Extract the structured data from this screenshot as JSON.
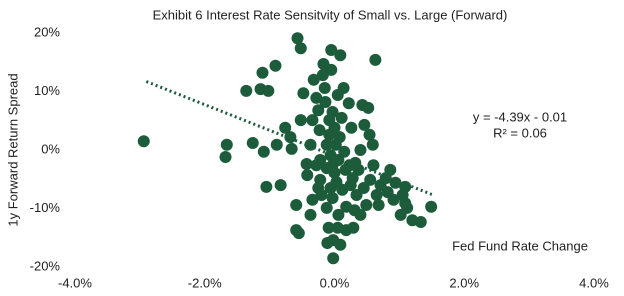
{
  "chart_data": {
    "type": "scatter",
    "title": "Exhibit 6 Interest Rate Sensitvity of Small vs. Large (Forward)",
    "x_label": "Fed Fund Rate Change",
    "y_label": "1y Forward Return Spread",
    "annotations": [
      "y = -4.39x - 0.01",
      "R² = 0.06"
    ],
    "color": "#1d5c3b",
    "xlim": [
      -4,
      4
    ],
    "ylim": [
      -20,
      20
    ],
    "xticks": [
      {
        "value": -4,
        "label": "-4.0%"
      },
      {
        "value": -2,
        "label": "-2.0%"
      },
      {
        "value": 0,
        "label": "0.0%"
      },
      {
        "value": 2,
        "label": "2.0%"
      },
      {
        "value": 4,
        "label": "4.0%"
      }
    ],
    "yticks": [
      {
        "value": -20,
        "label": "-20%"
      },
      {
        "value": -10,
        "label": "-10%"
      },
      {
        "value": 0,
        "label": "0%"
      },
      {
        "value": 10,
        "label": "10%"
      },
      {
        "value": 20,
        "label": "20%"
      }
    ],
    "trendline": {
      "x": [
        -2.9,
        1.5
      ],
      "y": [
        11.7,
        -7.6
      ]
    },
    "x": [
      -2.94,
      -1.66,
      -1.68,
      -1.36,
      -1.11,
      -1.14,
      -1.02,
      -0.91,
      -1.26,
      -1.09,
      -1.05,
      -0.89,
      -0.83,
      -0.76,
      -0.68,
      -0.66,
      -0.59,
      -0.59,
      -0.55,
      -0.57,
      -0.52,
      -0.48,
      -0.43,
      -0.42,
      -0.37,
      -0.34,
      -0.32,
      -0.28,
      -0.25,
      -0.23,
      -0.22,
      -0.22,
      -0.2,
      -0.18,
      -0.17,
      -0.15,
      -0.14,
      -0.12,
      -0.12,
      -0.12,
      -0.11,
      -0.09,
      -0.08,
      -0.08,
      -0.06,
      -0.06,
      -0.05,
      -0.05,
      -0.03,
      -0.03,
      -0.03,
      -0.02,
      -0.02,
      0,
      0,
      0.02,
      0.03,
      0.05,
      0.06,
      0.06,
      0.08,
      0.09,
      0.11,
      0.12,
      0.14,
      0.15,
      0.17,
      0.18,
      0.18,
      0.22,
      0.23,
      0.25,
      0.26,
      0.28,
      0.29,
      0.32,
      0.34,
      0.37,
      0.4,
      0.43,
      0.45,
      0.46,
      0.49,
      0.52,
      0.54,
      0.55,
      0.59,
      0.6,
      0.63,
      0.65,
      0.68,
      0.71,
      0.79,
      0.82,
      0.86,
      0.91,
      0.94,
      1.02,
      1.05,
      1.09,
      1.12,
      1.09,
      1.2,
      1.33,
      1.49,
      -0.52,
      -0.37,
      -0.28,
      -0.34,
      -0.25,
      0.05,
      0.09,
      0.31,
      0.4
    ],
    "values": [
      1.5,
      0.9,
      -1.2,
      10.1,
      13.2,
      10.4,
      10.1,
      14.4,
      1.2,
      -0.3,
      -6.3,
      0.9,
      -6.0,
      3.8,
      2.2,
      0.2,
      -9.4,
      -13.7,
      -14.2,
      19.1,
      17.4,
      9.7,
      -2.4,
      -4.3,
      -11.1,
      5.1,
      12.0,
      8.9,
      6.8,
      3.4,
      -1.7,
      -5.1,
      -7.7,
      12.8,
      14.7,
      10.6,
      8.2,
      0.9,
      -3.1,
      -9.9,
      -15.9,
      -13.3,
      5.1,
      2.6,
      -0.9,
      -6.5,
      17.1,
      13.7,
      6.5,
      -2.6,
      -8.2,
      -18.5,
      -15.4,
      3.8,
      -3.9,
      0.9,
      -5.5,
      9.4,
      -1.7,
      -11.1,
      2.2,
      16.2,
      5.5,
      -6.8,
      10.6,
      -0.3,
      -3.4,
      -13.7,
      -9.7,
      8.0,
      -2.6,
      -6.0,
      3.8,
      -4.8,
      -13.3,
      -2.2,
      -7.7,
      -3.4,
      0,
      7.7,
      -6.5,
      4.3,
      -9.4,
      7.2,
      2.6,
      -5.1,
      0.9,
      -2.6,
      15.4,
      -7.7,
      -9.4,
      -6.0,
      -4.8,
      -7.2,
      -3.4,
      -8.5,
      -5.6,
      -11.1,
      -7.7,
      -9.1,
      -9.9,
      -6.3,
      -12.0,
      -12.3,
      -9.7,
      5.1,
      0.9,
      -2.6,
      -8.5,
      -6.5,
      -13.3,
      -16.2,
      -10.3,
      -11.1
    ]
  }
}
